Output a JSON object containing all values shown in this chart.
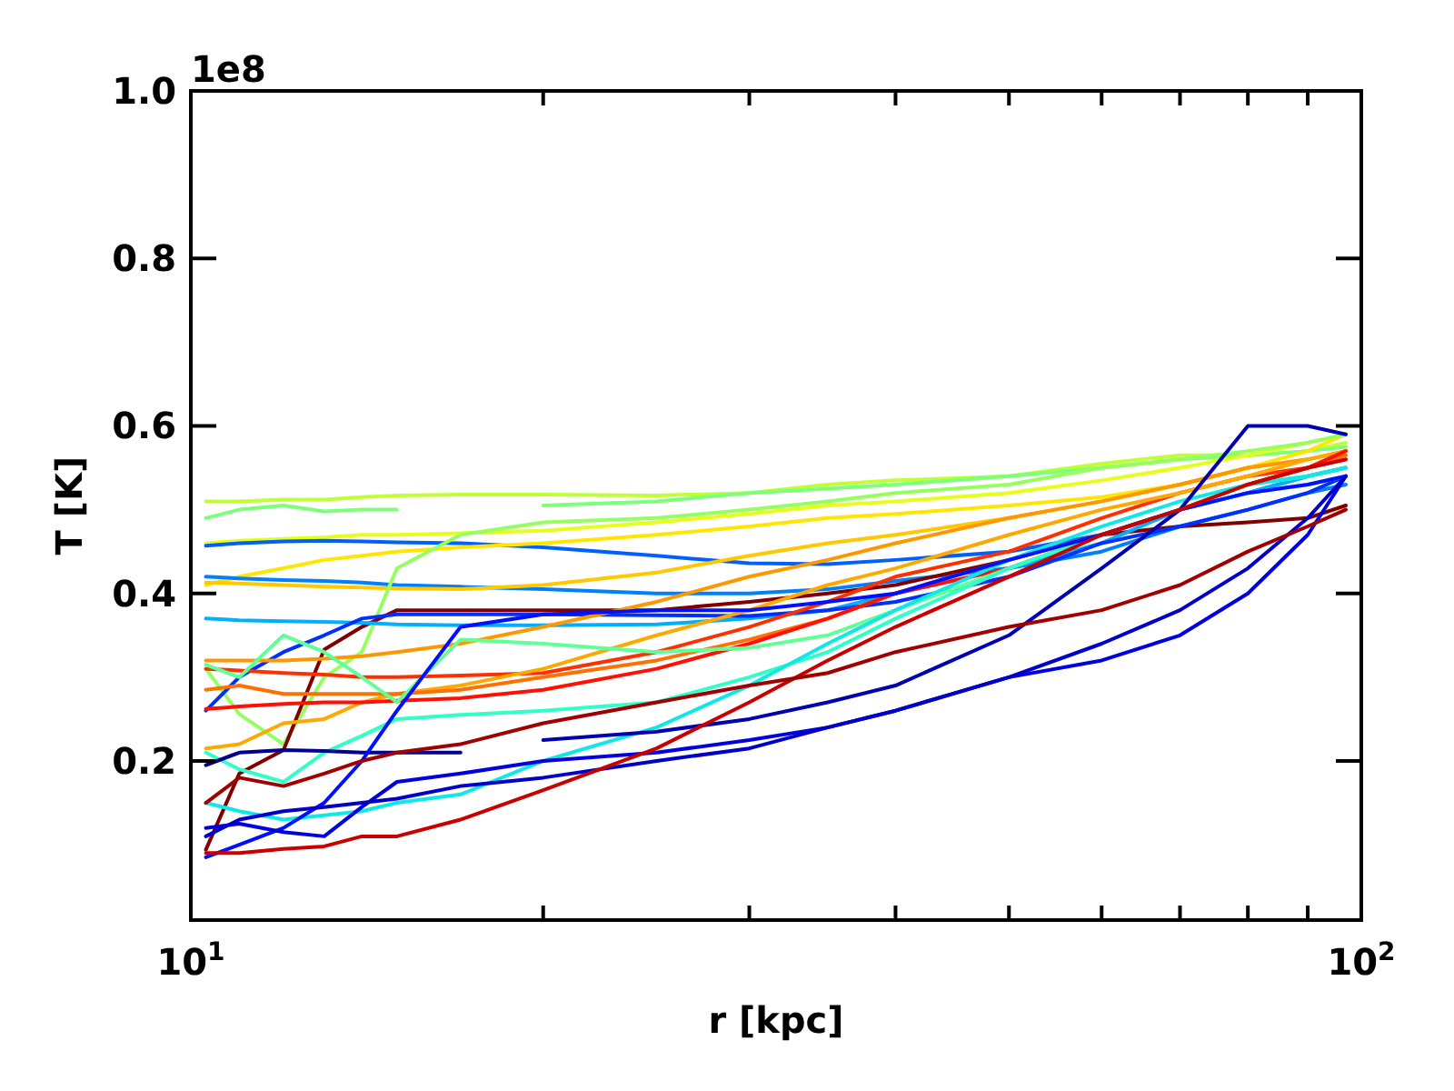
{
  "chart_data": {
    "type": "line",
    "xlabel": "r [kpc]",
    "ylabel": "T [K]",
    "annotations": [
      "1e8"
    ],
    "log": "x",
    "xlim": [
      10,
      100
    ],
    "ylim": [
      0.01,
      1.0
    ],
    "xticks": [
      {
        "value": 10,
        "label": "10$^{1}$"
      },
      {
        "value": 20,
        "label": null
      },
      {
        "value": 30,
        "label": null
      },
      {
        "value": 40,
        "label": null
      },
      {
        "value": 50,
        "label": null
      },
      {
        "value": 60,
        "label": null
      },
      {
        "value": 70,
        "label": null
      },
      {
        "value": 80,
        "label": null
      },
      {
        "value": 90,
        "label": null
      },
      {
        "value": 100,
        "label": "10$^{2}$"
      }
    ],
    "yticks": [
      0.2,
      0.4,
      0.6,
      0.8,
      {
        "value": 1.0,
        "label": "1.0"
      }
    ],
    "x": [
      10.3,
      11,
      12,
      13,
      14,
      15,
      17,
      20,
      25,
      30,
      35,
      40,
      50,
      60,
      70,
      80,
      90,
      97
    ],
    "series": [
      {
        "color": "#c0ff36",
        "values": [
          0.51,
          0.51,
          0.512,
          0.512,
          0.515,
          0.517,
          0.518,
          0.518,
          0.517,
          0.52,
          0.53,
          0.535,
          0.54,
          0.555,
          0.565,
          0.565,
          0.57,
          0.58
        ]
      },
      {
        "color": "#7cff79",
        "values": [
          0.49,
          0.5,
          0.505,
          0.498,
          0.5,
          0.5,
          null,
          0.505,
          0.51,
          0.52,
          0.525,
          0.53,
          0.54,
          0.55,
          0.56,
          0.565,
          0.57,
          0.575
        ]
      },
      {
        "color": "#e5ff1a",
        "values": [
          0.46,
          0.463,
          0.465,
          0.467,
          0.47,
          0.47,
          0.472,
          0.475,
          0.485,
          0.495,
          0.505,
          0.51,
          0.52,
          0.535,
          0.55,
          0.565,
          0.58,
          0.59
        ]
      },
      {
        "color": "#0060ff",
        "values": [
          0.457,
          0.46,
          0.462,
          0.463,
          0.462,
          0.461,
          0.46,
          0.455,
          0.445,
          0.436,
          0.435,
          0.44,
          0.45,
          0.47,
          0.5,
          0.52,
          0.54,
          0.55
        ]
      },
      {
        "color": "#ffe600",
        "values": [
          0.41,
          0.42,
          0.43,
          0.44,
          0.445,
          0.45,
          0.455,
          0.46,
          0.47,
          0.48,
          0.49,
          0.495,
          0.505,
          0.515,
          0.53,
          0.55,
          0.57,
          0.59
        ]
      },
      {
        "color": "#0080ff",
        "values": [
          0.42,
          0.418,
          0.416,
          0.415,
          0.413,
          0.41,
          0.408,
          0.405,
          0.4,
          0.4,
          0.405,
          0.415,
          0.43,
          0.45,
          0.48,
          0.5,
          0.52,
          0.53
        ]
      },
      {
        "color": "#ffc800",
        "values": [
          0.413,
          0.412,
          0.41,
          0.408,
          0.407,
          0.406,
          0.405,
          0.41,
          0.425,
          0.445,
          0.46,
          0.47,
          0.49,
          0.51,
          0.53,
          0.55,
          0.56,
          0.57
        ]
      },
      {
        "color": "#96ff60",
        "values": [
          0.31,
          0.256,
          0.22,
          0.3,
          0.33,
          0.43,
          0.47,
          0.485,
          0.49,
          0.5,
          0.51,
          0.52,
          0.53,
          0.55,
          0.56,
          0.57,
          0.58,
          0.59
        ]
      },
      {
        "color": "#800000",
        "values": [
          0.094,
          0.185,
          0.213,
          0.333,
          0.36,
          0.38,
          0.38,
          0.38,
          0.38,
          0.39,
          0.4,
          0.41,
          0.44,
          0.47,
          0.48,
          0.485,
          0.49,
          0.505
        ]
      },
      {
        "color": "#00b0ff",
        "values": [
          0.37,
          0.368,
          0.367,
          0.366,
          0.365,
          0.363,
          0.362,
          0.362,
          0.363,
          0.37,
          0.38,
          0.4,
          0.43,
          0.46,
          0.5,
          0.52,
          0.54,
          0.55
        ]
      },
      {
        "color": "#0030ff",
        "values": [
          0.26,
          0.3,
          0.33,
          0.35,
          0.37,
          0.375,
          0.375,
          0.375,
          0.374,
          0.373,
          0.38,
          0.39,
          0.42,
          0.46,
          0.48,
          0.5,
          0.52,
          0.54
        ]
      },
      {
        "color": "#ff3000",
        "values": [
          0.31,
          0.308,
          0.305,
          0.303,
          0.3,
          0.3,
          0.302,
          0.305,
          0.33,
          0.36,
          0.39,
          0.42,
          0.45,
          0.49,
          0.52,
          0.54,
          0.55,
          0.56
        ]
      },
      {
        "color": "#ff9800",
        "values": [
          0.32,
          0.32,
          0.32,
          0.322,
          0.325,
          0.33,
          0.34,
          0.36,
          0.39,
          0.42,
          0.44,
          0.46,
          0.49,
          0.51,
          0.53,
          0.55,
          0.56,
          0.57
        ]
      },
      {
        "color": "#ffa800",
        "values": [
          0.215,
          0.22,
          0.245,
          0.25,
          0.27,
          0.28,
          0.29,
          0.31,
          0.35,
          0.38,
          0.41,
          0.43,
          0.47,
          0.5,
          0.52,
          0.54,
          0.56,
          0.57
        ]
      },
      {
        "color": "#ff7000",
        "values": [
          0.285,
          0.29,
          0.28,
          0.28,
          0.28,
          0.28,
          0.285,
          0.3,
          0.32,
          0.345,
          0.37,
          0.4,
          0.44,
          0.47,
          0.5,
          0.53,
          0.55,
          0.565
        ]
      },
      {
        "color": "#ff1000",
        "values": [
          0.262,
          0.265,
          0.268,
          0.27,
          0.27,
          0.272,
          0.275,
          0.285,
          0.31,
          0.34,
          0.37,
          0.4,
          0.43,
          0.47,
          0.5,
          0.53,
          0.55,
          0.57
        ]
      },
      {
        "color": "#60ff97",
        "values": [
          0.315,
          0.3,
          0.35,
          0.33,
          0.3,
          0.27,
          0.345,
          0.34,
          0.33,
          0.335,
          0.35,
          0.38,
          0.43,
          0.47,
          0.5,
          0.53,
          0.54,
          0.55
        ]
      },
      {
        "color": "#30ffc7",
        "values": [
          0.21,
          0.19,
          0.175,
          0.21,
          0.23,
          0.25,
          0.255,
          0.26,
          0.27,
          0.3,
          0.33,
          0.37,
          0.43,
          0.47,
          0.5,
          0.52,
          0.53,
          0.54
        ]
      },
      {
        "color": "#10e8e8",
        "values": [
          0.15,
          0.14,
          0.13,
          0.135,
          0.14,
          0.15,
          0.16,
          0.2,
          0.24,
          0.29,
          0.34,
          0.38,
          0.44,
          0.48,
          0.51,
          0.53,
          0.54,
          0.55
        ]
      },
      {
        "color": "#000090",
        "values": [
          0.195,
          0.21,
          0.213,
          0.212,
          0.21,
          0.21,
          0.21,
          null,
          null,
          null,
          null,
          null,
          null,
          null,
          null,
          null,
          null,
          null
        ]
      },
      {
        "color": "#0000b0",
        "values": [
          null,
          null,
          null,
          null,
          null,
          null,
          null,
          0.225,
          0.235,
          0.25,
          0.27,
          0.29,
          0.35,
          0.43,
          0.5,
          0.6,
          0.6,
          0.59
        ]
      },
      {
        "color": "#0010ff",
        "values": [
          0.085,
          0.1,
          0.12,
          0.15,
          0.2,
          0.26,
          0.36,
          0.375,
          0.38,
          0.38,
          0.39,
          0.4,
          0.44,
          0.47,
          0.5,
          0.52,
          0.53,
          0.54
        ]
      },
      {
        "color": "#0000e0",
        "values": [
          0.12,
          0.125,
          0.115,
          0.11,
          0.145,
          0.175,
          0.185,
          0.2,
          0.21,
          0.225,
          0.24,
          0.26,
          0.3,
          0.32,
          0.35,
          0.4,
          0.47,
          0.54
        ]
      },
      {
        "color": "#0000c8",
        "values": [
          0.11,
          0.13,
          0.14,
          0.145,
          0.15,
          0.155,
          0.17,
          0.18,
          0.2,
          0.215,
          0.24,
          0.26,
          0.3,
          0.34,
          0.38,
          0.43,
          0.49,
          0.54
        ]
      },
      {
        "color": "#c80000",
        "values": [
          0.09,
          0.09,
          0.095,
          0.098,
          0.11,
          0.11,
          0.13,
          0.165,
          0.215,
          0.27,
          0.32,
          0.36,
          0.42,
          0.47,
          0.5,
          0.53,
          0.55,
          0.56
        ]
      },
      {
        "color": "#a00000",
        "values": [
          0.15,
          0.18,
          0.17,
          0.185,
          0.2,
          0.21,
          0.22,
          0.245,
          0.27,
          0.29,
          0.305,
          0.33,
          0.36,
          0.38,
          0.41,
          0.45,
          0.48,
          0.5
        ]
      }
    ]
  }
}
